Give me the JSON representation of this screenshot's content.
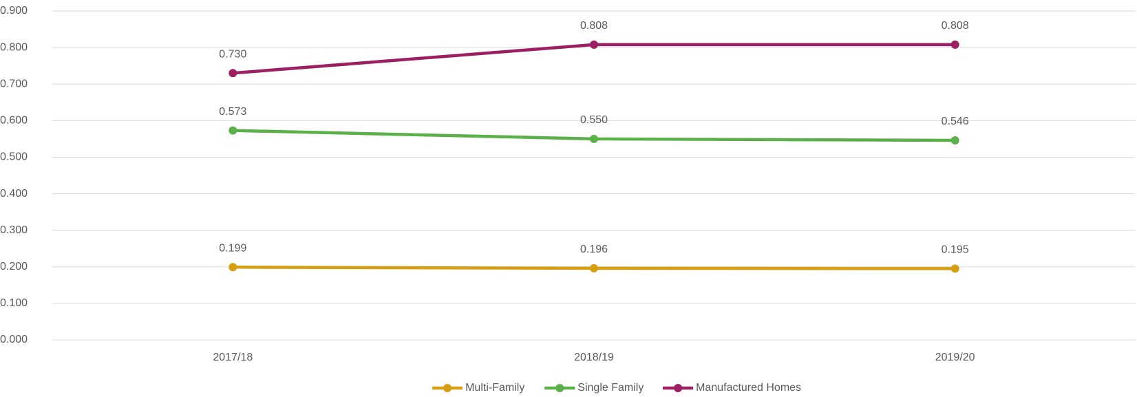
{
  "chart_data": {
    "type": "line",
    "categories": [
      "2017/18",
      "2018/19",
      "2019/20"
    ],
    "series": [
      {
        "name": "Multi-Family",
        "color": "#d69e13",
        "values": [
          0.199,
          0.196,
          0.195
        ],
        "value_labels": [
          "0.199",
          "0.196",
          "0.195"
        ]
      },
      {
        "name": "Single Family",
        "color": "#5cb04a",
        "values": [
          0.573,
          0.55,
          0.546
        ],
        "value_labels": [
          "0.573",
          "0.550",
          "0.546"
        ]
      },
      {
        "name": "Manufactured Homes",
        "color": "#9b1f62",
        "values": [
          0.73,
          0.808,
          0.808
        ],
        "value_labels": [
          "0.730",
          "0.808",
          "0.808"
        ]
      }
    ],
    "ylim": [
      0,
      0.9
    ],
    "yticks": [
      {
        "value": 0,
        "label": "0.000"
      },
      {
        "value": 0.1,
        "label": "0.100"
      },
      {
        "value": 0.2,
        "label": "0.200"
      },
      {
        "value": 0.3,
        "label": "0.300"
      },
      {
        "value": 0.4,
        "label": "0.400"
      },
      {
        "value": 0.5,
        "label": "0.500"
      },
      {
        "value": 0.6,
        "label": "0.600"
      },
      {
        "value": 0.7,
        "label": "0.700"
      },
      {
        "value": 0.8,
        "label": "0.800"
      },
      {
        "value": 0.9,
        "label": "0.900"
      }
    ],
    "grid": true,
    "legend": "bottom"
  }
}
